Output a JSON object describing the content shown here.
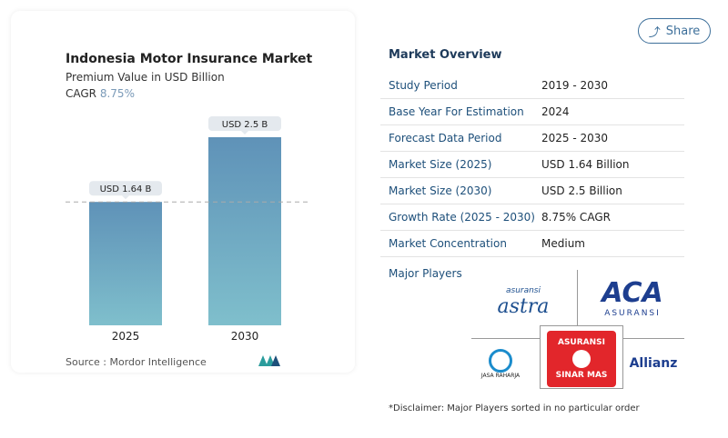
{
  "chart_data": {
    "type": "bar",
    "title": "Indonesia Motor Insurance Market",
    "subtitle": "Premium Value in USD Billion",
    "cagr_label": "CAGR",
    "cagr_value": "8.75%",
    "categories": [
      "2025",
      "2030"
    ],
    "values": [
      1.64,
      2.5
    ],
    "data_labels": [
      "USD 1.64 B",
      "USD 2.5 B"
    ],
    "bar_color": "#6a9fc0",
    "reference_line": "dashed at 2025 value",
    "ylim": [
      0,
      2.5
    ]
  },
  "source": "Source :  Mordor Intelligence",
  "share_label": "Share",
  "overview": {
    "title": "Market Overview",
    "rows": [
      {
        "label": "Study Period",
        "value": "2019 - 2030"
      },
      {
        "label": "Base Year For Estimation",
        "value": "2024"
      },
      {
        "label": "Forecast Data Period",
        "value": "2025 - 2030"
      },
      {
        "label": "Market Size (2025)",
        "value": "USD 1.64 Billion"
      },
      {
        "label": "Market Size (2030)",
        "value": "USD 2.5 Billion"
      },
      {
        "label": "Growth Rate (2025 - 2030)",
        "value": "8.75% CAGR"
      },
      {
        "label": "Market Concentration",
        "value": "Medium"
      }
    ],
    "major_players_label": "Major Players",
    "players": [
      "asuransi astra",
      "ACA ASURANSI",
      "JASA RAHARJA",
      "ASURANSI SINAR MAS",
      "Allianz"
    ]
  },
  "disclaimer": "*Disclaimer: Major Players sorted in no particular order"
}
